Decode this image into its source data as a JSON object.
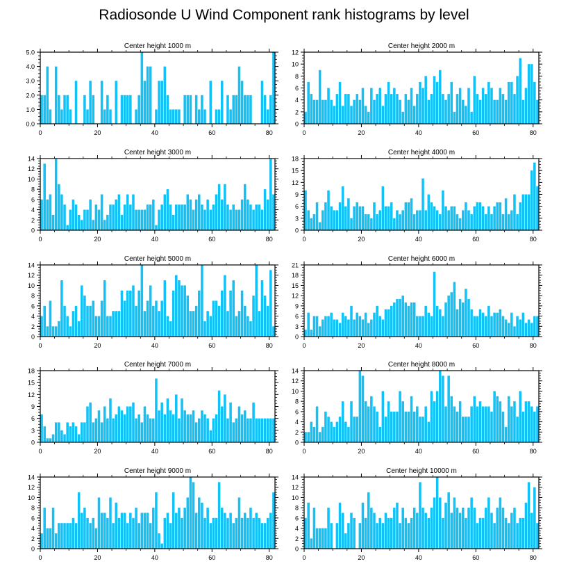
{
  "figure": {
    "title": "Radiosonde U Wind Component rank histograms by level",
    "bar_color": "#12c1f5",
    "axis_color": "#000000"
  },
  "chart_data": [
    {
      "type": "bar",
      "title": "Center height 1000 m",
      "xlim": [
        0,
        82
      ],
      "ylim": [
        0,
        5
      ],
      "yticks": [
        0,
        1,
        2,
        3,
        4,
        5
      ],
      "ytick_labels": [
        "0.0",
        "1.0",
        "2.0",
        "3.0",
        "4.0",
        "5.0"
      ],
      "xticks": [
        0,
        20,
        40,
        60,
        80
      ],
      "xtick_labels": [
        "0",
        "20",
        "40",
        "60",
        "80"
      ],
      "values": [
        2,
        2,
        4,
        1,
        0,
        4,
        2,
        1,
        2,
        2,
        1,
        0,
        3,
        0,
        0,
        2,
        1,
        3,
        2,
        0,
        0,
        3,
        1,
        2,
        1,
        0,
        3,
        0,
        2,
        2,
        2,
        2,
        0,
        1,
        2,
        5,
        3,
        4,
        4,
        0,
        1,
        3,
        3,
        4,
        2,
        1,
        1,
        1,
        1,
        0,
        2,
        2,
        2,
        0,
        2,
        1,
        2,
        1,
        0,
        3,
        0,
        1,
        1,
        3,
        0,
        2,
        1,
        2,
        2,
        4,
        3,
        2,
        2,
        2,
        0,
        0,
        0,
        3,
        2,
        1,
        2,
        5
      ]
    },
    {
      "type": "bar",
      "title": "Center height 2000 m",
      "xlim": [
        0,
        82
      ],
      "ylim": [
        0,
        12
      ],
      "yticks": [
        0,
        2,
        4,
        6,
        8,
        10,
        12
      ],
      "ytick_labels": [
        "0",
        "2",
        "4",
        "6",
        "8",
        "10",
        "12"
      ],
      "xticks": [
        0,
        20,
        40,
        60,
        80
      ],
      "xtick_labels": [
        "0",
        "20",
        "40",
        "60",
        "80"
      ],
      "values": [
        2,
        7,
        5,
        4,
        4,
        9,
        4,
        4,
        6,
        4,
        3,
        5,
        7,
        3,
        5,
        5,
        3,
        4,
        5,
        4,
        6,
        3,
        2,
        6,
        4,
        5,
        6,
        3,
        5,
        7,
        5,
        6,
        5,
        4,
        2,
        5,
        4,
        6,
        3,
        5,
        7,
        6,
        8,
        4,
        5,
        8,
        7,
        9,
        5,
        4,
        5,
        7,
        2,
        5,
        6,
        4,
        3,
        6,
        2,
        8,
        5,
        4,
        6,
        5,
        7,
        6,
        4,
        4,
        6,
        5,
        4,
        7,
        7,
        5,
        8,
        11,
        4,
        6,
        10,
        10,
        7,
        4
      ]
    },
    {
      "type": "bar",
      "title": "Center height 3000 m",
      "xlim": [
        0,
        82
      ],
      "ylim": [
        0,
        14
      ],
      "yticks": [
        0,
        2,
        4,
        6,
        8,
        10,
        12,
        14
      ],
      "ytick_labels": [
        "0",
        "2",
        "4",
        "6",
        "8",
        "10",
        "12",
        "14"
      ],
      "xticks": [
        0,
        20,
        40,
        60,
        80
      ],
      "xtick_labels": [
        "0",
        "20",
        "40",
        "60",
        "80"
      ],
      "values": [
        6,
        13,
        6,
        7,
        3,
        14,
        9,
        7,
        5,
        1,
        4,
        6,
        5,
        3,
        2,
        4,
        4,
        6,
        2,
        5,
        4,
        7,
        2,
        3,
        5,
        5,
        6,
        7,
        3,
        5,
        7,
        5,
        7,
        4,
        4,
        4,
        4,
        5,
        5,
        6,
        1,
        4,
        5,
        7,
        8,
        5,
        3,
        5,
        5,
        5,
        5,
        7,
        6,
        4,
        6,
        7,
        5,
        4,
        6,
        4,
        5,
        7,
        9,
        6,
        9,
        5,
        4,
        5,
        4,
        4,
        6,
        9,
        6,
        5,
        4,
        5,
        5,
        4,
        8,
        6,
        14,
        7
      ]
    },
    {
      "type": "bar",
      "title": "Center height 4000 m",
      "xlim": [
        0,
        82
      ],
      "ylim": [
        0,
        18
      ],
      "yticks": [
        0,
        3,
        6,
        9,
        12,
        15,
        18
      ],
      "ytick_labels": [
        "0",
        "3",
        "6",
        "9",
        "12",
        "15",
        "18"
      ],
      "xticks": [
        0,
        20,
        40,
        60,
        80
      ],
      "xtick_labels": [
        "0",
        "20",
        "40",
        "60",
        "80"
      ],
      "values": [
        10,
        5,
        3,
        4,
        7,
        2,
        5,
        7,
        10,
        6,
        5,
        5,
        7,
        11,
        6,
        8,
        3,
        6,
        7,
        6,
        6,
        4,
        4,
        3,
        7,
        4,
        5,
        11,
        6,
        6,
        7,
        3,
        5,
        4,
        5,
        7,
        7,
        8,
        4,
        5,
        5,
        13,
        5,
        9,
        7,
        6,
        5,
        4,
        10,
        6,
        5,
        6,
        6,
        4,
        3,
        5,
        7,
        5,
        4,
        6,
        7,
        7,
        6,
        4,
        6,
        4,
        6,
        7,
        7,
        4,
        8,
        4,
        5,
        9,
        4,
        7,
        9,
        9,
        9,
        15,
        17,
        11
      ]
    },
    {
      "type": "bar",
      "title": "Center height 5000 m",
      "xlim": [
        0,
        82
      ],
      "ylim": [
        0,
        14
      ],
      "yticks": [
        0,
        2,
        4,
        6,
        8,
        10,
        12,
        14
      ],
      "ytick_labels": [
        "0",
        "2",
        "4",
        "6",
        "8",
        "10",
        "12",
        "14"
      ],
      "xticks": [
        0,
        20,
        40,
        60,
        80
      ],
      "xtick_labels": [
        "0",
        "20",
        "40",
        "60",
        "80"
      ],
      "values": [
        4,
        6,
        2,
        7,
        2,
        2,
        3,
        11,
        6,
        4,
        2,
        5,
        6,
        3,
        10,
        8,
        6,
        6,
        7,
        4,
        4,
        7,
        11,
        4,
        4,
        5,
        5,
        5,
        9,
        7,
        9,
        9,
        10,
        6,
        9,
        14,
        5,
        7,
        10,
        6,
        7,
        5,
        7,
        11,
        4,
        3,
        9,
        12,
        11,
        10,
        10,
        8,
        5,
        5,
        6,
        9,
        14,
        3,
        5,
        4,
        7,
        7,
        6,
        9,
        12,
        5,
        9,
        11,
        4,
        5,
        9,
        6,
        4,
        3,
        8,
        14,
        5,
        11,
        8,
        6,
        13,
        2
      ]
    },
    {
      "type": "bar",
      "title": "Center height 6000 m",
      "xlim": [
        0,
        82
      ],
      "ylim": [
        0,
        21
      ],
      "yticks": [
        0,
        3,
        6,
        9,
        12,
        15,
        18,
        21
      ],
      "ytick_labels": [
        "0",
        "3",
        "6",
        "9",
        "12",
        "15",
        "18",
        "21"
      ],
      "xticks": [
        0,
        20,
        40,
        60,
        80
      ],
      "xtick_labels": [
        "0",
        "20",
        "40",
        "60",
        "80"
      ],
      "values": [
        2,
        7,
        2,
        6,
        6,
        3,
        5,
        6,
        6,
        7,
        5,
        5,
        4,
        7,
        6,
        5,
        9,
        5,
        7,
        6,
        5,
        7,
        4,
        5,
        7,
        9,
        6,
        5,
        8,
        8,
        9,
        10,
        11,
        11,
        12,
        10,
        9,
        10,
        10,
        6,
        6,
        6,
        9,
        7,
        6,
        19,
        9,
        8,
        6,
        10,
        12,
        13,
        16,
        8,
        11,
        10,
        14,
        11,
        8,
        6,
        6,
        8,
        7,
        6,
        9,
        6,
        7,
        7,
        8,
        6,
        5,
        4,
        7,
        3,
        6,
        5,
        7,
        4,
        5,
        4,
        6,
        6
      ]
    },
    {
      "type": "bar",
      "title": "Center height 7000 m",
      "xlim": [
        0,
        82
      ],
      "ylim": [
        0,
        18
      ],
      "yticks": [
        0,
        3,
        6,
        9,
        12,
        15,
        18
      ],
      "ytick_labels": [
        "0",
        "3",
        "6",
        "9",
        "12",
        "15",
        "18"
      ],
      "xticks": [
        0,
        20,
        40,
        60,
        80
      ],
      "xtick_labels": [
        "0",
        "20",
        "40",
        "60",
        "80"
      ],
      "values": [
        7,
        4,
        1,
        1,
        2,
        5,
        5,
        3,
        2,
        5,
        4,
        5,
        4,
        2,
        5,
        5,
        9,
        10,
        5,
        6,
        8,
        5,
        9,
        6,
        11,
        6,
        7,
        9,
        8,
        7,
        9,
        9,
        10,
        6,
        7,
        5,
        9,
        7,
        6,
        6,
        16,
        8,
        10,
        7,
        11,
        8,
        7,
        12,
        6,
        11,
        8,
        7,
        7,
        8,
        5,
        6,
        8,
        7,
        6,
        3,
        6,
        7,
        13,
        9,
        12,
        6,
        10,
        5,
        6,
        9,
        7,
        8,
        6,
        6,
        10,
        6,
        6,
        6,
        6,
        6,
        6,
        6
      ]
    },
    {
      "type": "bar",
      "title": "Center height 8000 m",
      "xlim": [
        0,
        82
      ],
      "ylim": [
        0,
        14
      ],
      "yticks": [
        0,
        2,
        4,
        6,
        8,
        10,
        12,
        14
      ],
      "ytick_labels": [
        "0",
        "2",
        "4",
        "6",
        "8",
        "10",
        "12",
        "14"
      ],
      "xticks": [
        0,
        20,
        40,
        60,
        80
      ],
      "xtick_labels": [
        "0",
        "20",
        "40",
        "60",
        "80"
      ],
      "values": [
        2,
        2,
        4,
        3,
        7,
        2,
        3,
        6,
        5,
        4,
        3,
        4,
        5,
        8,
        4,
        3,
        8,
        5,
        5,
        14,
        13,
        8,
        7,
        9,
        7,
        6,
        3,
        10,
        5,
        8,
        6,
        6,
        6,
        10,
        8,
        6,
        6,
        9,
        6,
        7,
        5,
        5,
        7,
        4,
        10,
        8,
        10,
        14,
        13,
        7,
        13,
        9,
        7,
        6,
        8,
        5,
        5,
        5,
        7,
        9,
        7,
        8,
        7,
        7,
        7,
        6,
        10,
        9,
        8,
        6,
        3,
        9,
        7,
        8,
        5,
        10,
        6,
        8,
        8,
        7,
        6,
        7
      ]
    },
    {
      "type": "bar",
      "title": "Center height 9000 m",
      "xlim": [
        0,
        82
      ],
      "ylim": [
        0,
        14
      ],
      "yticks": [
        0,
        2,
        4,
        6,
        8,
        10,
        12,
        14
      ],
      "ytick_labels": [
        "0",
        "2",
        "4",
        "6",
        "8",
        "10",
        "12",
        "14"
      ],
      "xticks": [
        0,
        20,
        40,
        60,
        80
      ],
      "xtick_labels": [
        "0",
        "20",
        "40",
        "60",
        "80"
      ],
      "values": [
        3,
        8,
        4,
        4,
        8,
        3,
        5,
        5,
        5,
        5,
        5,
        6,
        5,
        11,
        7,
        8,
        6,
        5,
        6,
        4,
        10,
        7,
        7,
        6,
        10,
        5,
        9,
        6,
        7,
        7,
        5,
        7,
        6,
        8,
        5,
        7,
        7,
        7,
        5,
        8,
        11,
        3,
        1,
        6,
        7,
        5,
        11,
        7,
        8,
        6,
        8,
        10,
        14,
        13,
        7,
        10,
        9,
        6,
        8,
        5,
        6,
        6,
        13,
        8,
        7,
        6,
        7,
        5,
        6,
        10,
        6,
        7,
        6,
        8,
        6,
        7,
        6,
        5,
        5,
        6,
        7,
        11
      ]
    },
    {
      "type": "bar",
      "title": "Center height 10000 m",
      "xlim": [
        0,
        82
      ],
      "ylim": [
        0,
        14
      ],
      "yticks": [
        0,
        2,
        4,
        6,
        8,
        10,
        12,
        14
      ],
      "ytick_labels": [
        "0",
        "2",
        "4",
        "6",
        "8",
        "10",
        "12",
        "14"
      ],
      "xticks": [
        0,
        20,
        40,
        60,
        80
      ],
      "xtick_labels": [
        "0",
        "20",
        "40",
        "60",
        "80"
      ],
      "values": [
        6,
        9,
        2,
        8,
        4,
        4,
        4,
        4,
        8,
        5,
        0,
        5,
        9,
        7,
        3,
        5,
        7,
        6,
        0,
        5,
        9,
        6,
        11,
        8,
        7,
        5,
        6,
        5,
        7,
        6,
        6,
        8,
        9,
        5,
        8,
        6,
        5,
        6,
        8,
        7,
        13,
        8,
        7,
        6,
        8,
        10,
        14,
        10,
        6,
        9,
        11,
        7,
        10,
        8,
        7,
        8,
        6,
        8,
        10,
        8,
        5,
        6,
        6,
        8,
        10,
        7,
        5,
        8,
        10,
        8,
        6,
        5,
        7,
        8,
        5,
        6,
        6,
        9,
        13,
        7,
        12,
        5
      ]
    }
  ]
}
